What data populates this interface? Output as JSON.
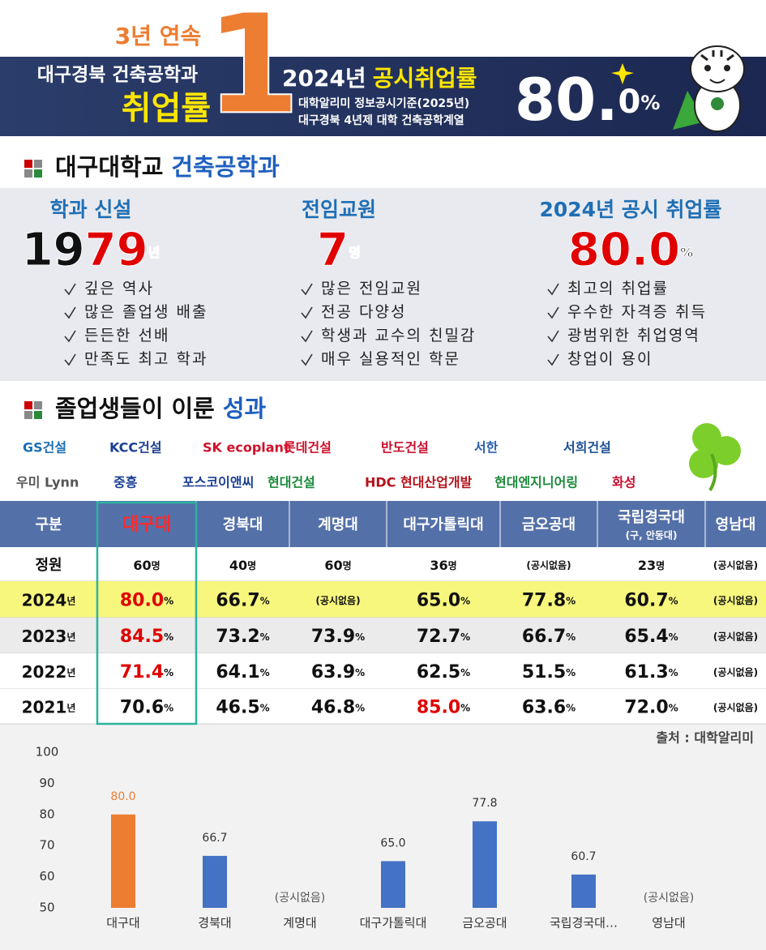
{
  "banner": {
    "streak": "3년 연속",
    "dept": "대구경북 건축공학과",
    "rate_label": "취업률",
    "rank": "1",
    "year": "2024년",
    "title": "공시취업률",
    "source_lines": [
      "대학알리미 정보공시기준(2025년)",
      "대구경북 4년제 대학 건축공학계열"
    ],
    "rate_whole": "80.",
    "rate_decimal": "0",
    "rate_unit": "%"
  },
  "section1": {
    "school": "대구대학교",
    "dept": "건축공학과"
  },
  "stats": [
    {
      "heading": "학과 신설",
      "value": [
        "19",
        "79"
      ],
      "colors": [
        "#111111",
        "#e00000"
      ],
      "unit": "년",
      "bullets": [
        "깊은 역사",
        "많은 졸업생 배출",
        "든든한 선배",
        "만족도 최고 학과"
      ]
    },
    {
      "heading": "전임교원",
      "value": [
        "7"
      ],
      "colors": [
        "#e00000"
      ],
      "unit": "명",
      "bullets": [
        "많은 전임교원",
        "전공 다양성",
        "학생과 교수의 친밀감",
        "매우 실용적인 학문"
      ]
    },
    {
      "heading": "2024년 공시 취업률",
      "value": [
        "80.0"
      ],
      "colors": [
        "#e00000"
      ],
      "unit": "%",
      "bullets": [
        "최고의 취업률",
        "우수한 자격증 취득",
        "광범위한 취업영역",
        "창업이 용이"
      ]
    }
  ],
  "section2": {
    "title": "졸업생들이 이룬",
    "highlight": "성과"
  },
  "logos": [
    [
      "GS건설",
      "KCC건설",
      "SK ecoplant",
      "롯데건설",
      "반도건설",
      "서한",
      "서희건설"
    ],
    [
      "우미 Lynn",
      "중흥",
      "포스코이앤씨",
      "현대건설",
      "HDC 현대산업개발",
      "현대엔지니어링",
      "화성"
    ]
  ],
  "table": {
    "header": [
      "구분",
      "대구대",
      "경북대",
      "계명대",
      "대구가톨릭대",
      "금오공대",
      "국립경국대",
      "영남대"
    ],
    "header_note": "(구, 안동대)",
    "rows": [
      {
        "label": "정원",
        "cells": [
          {
            "value": "60",
            "unit": "명"
          },
          {
            "value": "40",
            "unit": "명"
          },
          {
            "value": "60",
            "unit": "명"
          },
          {
            "value": "36",
            "unit": "명"
          },
          {
            "text": "(공시없음)"
          },
          {
            "value": "23",
            "unit": "명"
          },
          {
            "text": "(공시없음)"
          }
        ]
      },
      {
        "label": "2024",
        "label_unit": "년",
        "cells": [
          {
            "value": "80.0",
            "unit": "%",
            "color": "#e00000"
          },
          {
            "value": "66.7",
            "unit": "%"
          },
          {
            "text": "(공시없음)"
          },
          {
            "value": "65.0",
            "unit": "%"
          },
          {
            "value": "77.8",
            "unit": "%"
          },
          {
            "value": "60.7",
            "unit": "%"
          },
          {
            "text": "(공시없음)"
          }
        ]
      },
      {
        "label": "2023",
        "label_unit": "년",
        "cells": [
          {
            "value": "84.5",
            "unit": "%",
            "color": "#e00000"
          },
          {
            "value": "73.2",
            "unit": "%"
          },
          {
            "value": "73.9",
            "unit": "%"
          },
          {
            "value": "72.7",
            "unit": "%"
          },
          {
            "value": "66.7",
            "unit": "%"
          },
          {
            "value": "65.4",
            "unit": "%"
          },
          {
            "text": "(공시없음)"
          }
        ]
      },
      {
        "label": "2022",
        "label_unit": "년",
        "cells": [
          {
            "value": "71.4",
            "unit": "%",
            "color": "#e00000"
          },
          {
            "value": "64.1",
            "unit": "%"
          },
          {
            "value": "63.9",
            "unit": "%"
          },
          {
            "value": "62.5",
            "unit": "%"
          },
          {
            "value": "51.5",
            "unit": "%"
          },
          {
            "value": "61.3",
            "unit": "%"
          },
          {
            "text": "(공시없음)"
          }
        ]
      },
      {
        "label": "2021",
        "label_unit": "년",
        "cells": [
          {
            "value": "70.6",
            "unit": "%"
          },
          {
            "value": "46.5",
            "unit": "%"
          },
          {
            "value": "46.8",
            "unit": "%"
          },
          {
            "value": "85.0",
            "unit": "%",
            "color": "#e00000"
          },
          {
            "value": "63.6",
            "unit": "%"
          },
          {
            "value": "72.0",
            "unit": "%"
          },
          {
            "text": "(공시없음)"
          }
        ]
      }
    ]
  },
  "source": "출처 : 대학알리미",
  "chart_data": {
    "type": "bar",
    "categories": [
      "대구대",
      "경북대",
      "계명대",
      "대구가톨릭대",
      "금오공대",
      "국립경국대…",
      "영남대"
    ],
    "values": [
      80.0,
      66.7,
      null,
      65.0,
      77.8,
      60.7,
      null
    ],
    "value_labels": [
      "80.0",
      "66.7",
      "(공시없음)",
      "65.0",
      "77.8",
      "60.7",
      "(공시없음)"
    ],
    "colors": [
      "#ed7d31",
      "#4472c4",
      "#4472c4",
      "#4472c4",
      "#4472c4",
      "#4472c4",
      "#4472c4"
    ],
    "ylim": [
      50,
      100
    ],
    "yticks": [
      50,
      60,
      70,
      80,
      90,
      100
    ],
    "grid": false
  }
}
